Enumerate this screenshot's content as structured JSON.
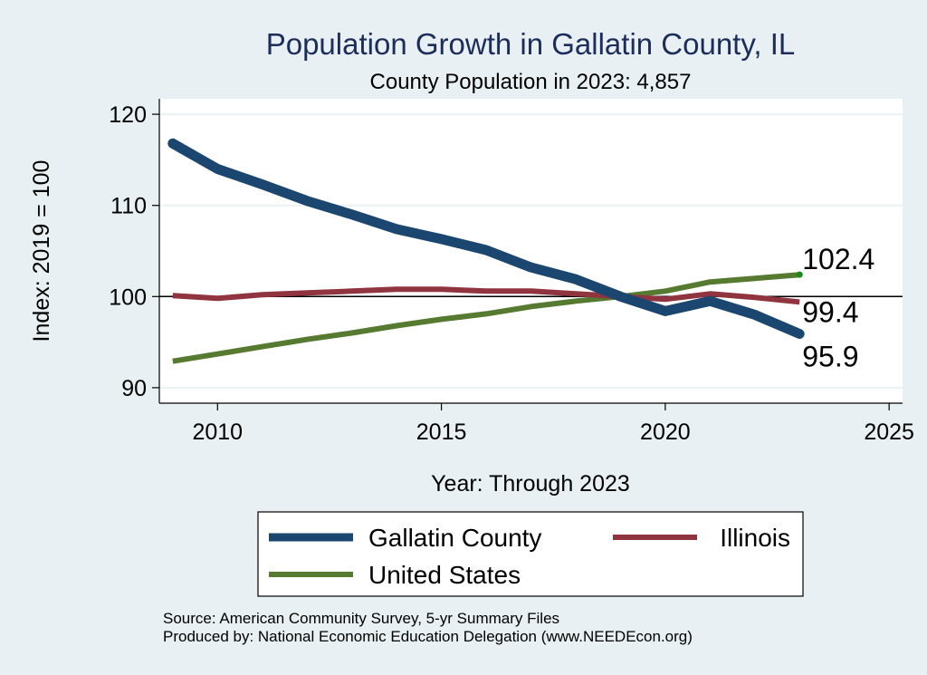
{
  "chart_data": {
    "type": "line",
    "title": "Population Growth in Gallatin County, IL",
    "subtitle": "County Population in 2023: 4,857",
    "xlabel": "Year: Through 2023",
    "ylabel": "Index: 2019 = 100",
    "xlim": [
      2008.7,
      2025.3
    ],
    "ylim": [
      88.3,
      121.7
    ],
    "xticks": [
      2010,
      2015,
      2020,
      2025
    ],
    "yticks": [
      90,
      100,
      110,
      120
    ],
    "reference_line": 100,
    "grid": true,
    "x": [
      2009,
      2010,
      2011,
      2012,
      2013,
      2014,
      2015,
      2016,
      2017,
      2018,
      2019,
      2020,
      2021,
      2022,
      2023
    ],
    "series": [
      {
        "name": "Gallatin  County",
        "color": "#1a4670",
        "values": [
          116.8,
          114.0,
          112.3,
          110.5,
          109.0,
          107.4,
          106.3,
          105.1,
          103.2,
          101.9,
          100.0,
          98.4,
          99.5,
          98.0,
          95.9
        ],
        "end_label": "95.9"
      },
      {
        "name": "Illinois",
        "color": "#903540",
        "values": [
          100.1,
          99.8,
          100.2,
          100.4,
          100.6,
          100.8,
          100.8,
          100.6,
          100.6,
          100.3,
          100.0,
          99.7,
          100.3,
          99.9,
          99.4
        ],
        "end_label": "99.4"
      },
      {
        "name": "United States",
        "color": "#557a30",
        "values": [
          92.9,
          93.7,
          94.5,
          95.3,
          96.0,
          96.8,
          97.5,
          98.1,
          98.9,
          99.5,
          100.0,
          100.6,
          101.6,
          102.0,
          102.4
        ],
        "end_label": "102.4"
      }
    ],
    "legend": {
      "position": "bottom",
      "entries": [
        "Gallatin  County",
        "Illinois",
        "United States"
      ]
    },
    "notes": [
      "Source: American Community Survey, 5-yr Summary Files",
      "Produced by: National Economic Education Delegation (www.NEEDEcon.org)"
    ]
  }
}
